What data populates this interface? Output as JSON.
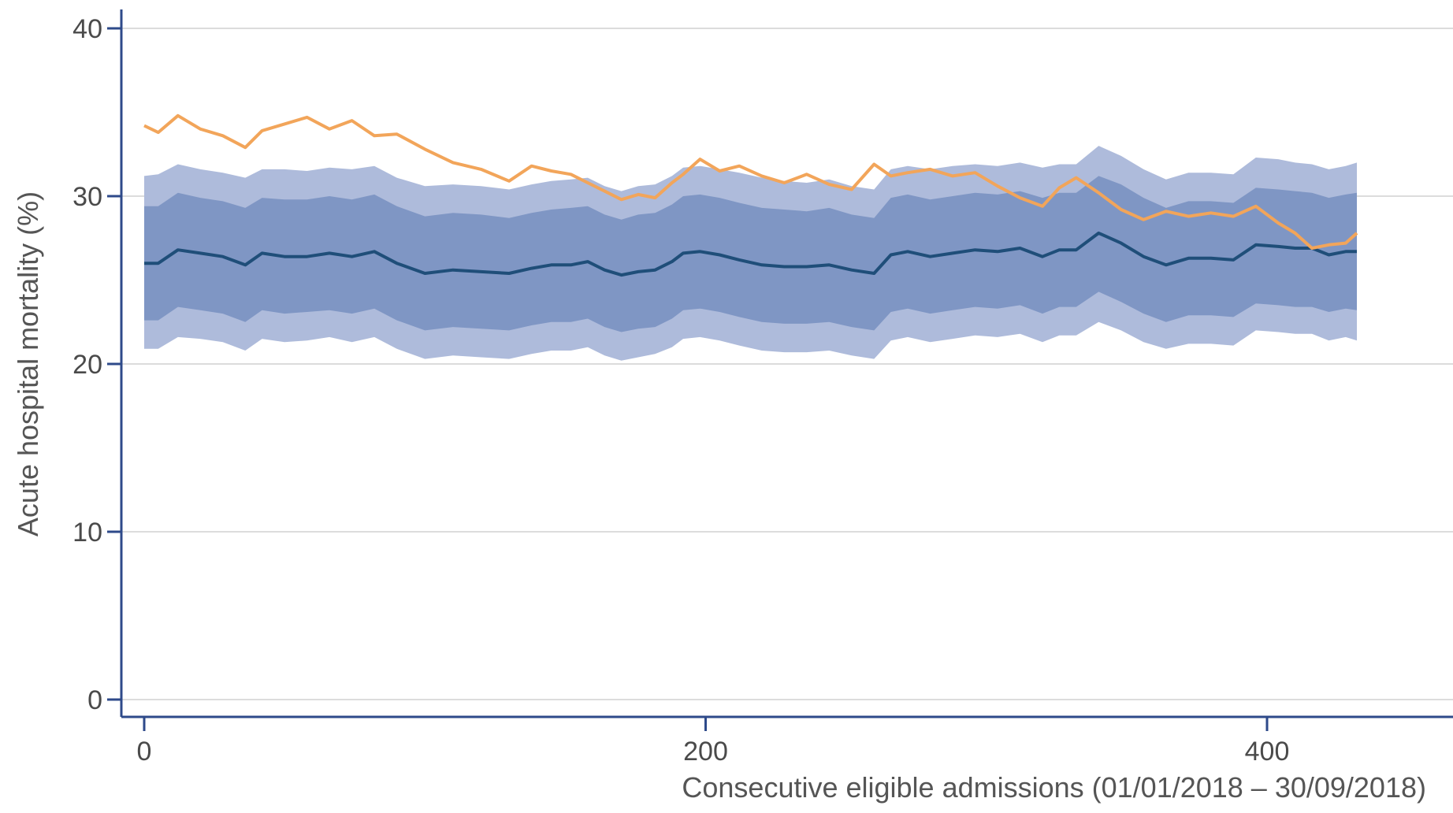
{
  "chart_data": {
    "type": "line",
    "title": "",
    "xlabel": "Consecutive eligible admissions (01/01/2018 – 30/09/2018)",
    "ylabel": "Acute hospital mortality (%)",
    "xlim": [
      -8,
      465
    ],
    "ylim": [
      -0.5,
      40.5
    ],
    "x_ticks": [
      0,
      200,
      400
    ],
    "y_ticks": [
      0,
      10,
      20,
      30,
      40
    ],
    "grid": true,
    "legend": "none",
    "colors": {
      "observed": "#f2a55a",
      "expected": "#1f4e79",
      "inner_band": "#7f96c4",
      "outer_band": "#aebbdb",
      "axis": "#2e4a8a",
      "grid": "#dcdcdc"
    },
    "series": [
      {
        "role": "observed",
        "x": [
          0,
          5,
          12,
          20,
          28,
          36,
          42,
          50,
          58,
          66,
          74,
          82,
          90,
          100,
          110,
          120,
          130,
          138,
          145,
          152,
          158,
          164,
          170,
          176,
          182,
          188,
          192,
          198,
          205,
          212,
          220,
          228,
          236,
          244,
          252,
          260,
          266,
          272,
          280,
          288,
          296,
          304,
          312,
          320,
          326,
          332,
          340,
          348,
          356,
          364,
          372,
          380,
          388,
          396,
          404,
          410,
          416,
          422,
          428,
          432
        ],
        "y": [
          34.2,
          33.8,
          34.8,
          34.0,
          33.6,
          32.9,
          33.9,
          34.3,
          34.7,
          34.0,
          34.5,
          33.6,
          33.7,
          32.8,
          32.0,
          31.6,
          30.9,
          31.8,
          31.5,
          31.3,
          30.8,
          30.3,
          29.8,
          30.1,
          29.9,
          30.8,
          31.3,
          32.2,
          31.5,
          31.8,
          31.2,
          30.8,
          31.3,
          30.7,
          30.4,
          31.9,
          31.2,
          31.4,
          31.6,
          31.2,
          31.4,
          30.6,
          29.9,
          29.4,
          30.5,
          31.1,
          30.2,
          29.2,
          28.6,
          29.1,
          28.8,
          29.0,
          28.8,
          29.4,
          28.4,
          27.8,
          26.9,
          27.1,
          27.2,
          27.8
        ]
      },
      {
        "role": "expected",
        "x": [
          0,
          5,
          12,
          20,
          28,
          36,
          42,
          50,
          58,
          66,
          74,
          82,
          90,
          100,
          110,
          120,
          130,
          138,
          145,
          152,
          158,
          164,
          170,
          176,
          182,
          188,
          192,
          198,
          205,
          212,
          220,
          228,
          236,
          244,
          252,
          260,
          266,
          272,
          280,
          288,
          296,
          304,
          312,
          320,
          326,
          332,
          340,
          348,
          356,
          364,
          372,
          380,
          388,
          396,
          404,
          410,
          416,
          422,
          428,
          432
        ],
        "y": [
          26.0,
          26.0,
          26.8,
          26.6,
          26.4,
          25.9,
          26.6,
          26.4,
          26.4,
          26.6,
          26.4,
          26.7,
          26.0,
          25.4,
          25.6,
          25.5,
          25.4,
          25.7,
          25.9,
          25.9,
          26.1,
          25.6,
          25.3,
          25.5,
          25.6,
          26.1,
          26.6,
          26.7,
          26.5,
          26.2,
          25.9,
          25.8,
          25.8,
          25.9,
          25.6,
          25.4,
          26.5,
          26.7,
          26.4,
          26.6,
          26.8,
          26.7,
          26.9,
          26.4,
          26.8,
          26.8,
          27.8,
          27.2,
          26.4,
          25.9,
          26.3,
          26.3,
          26.2,
          27.1,
          27.0,
          26.9,
          26.9,
          26.5,
          26.7,
          26.7
        ]
      }
    ],
    "bands": [
      {
        "role": "outer",
        "x": [
          0,
          5,
          12,
          20,
          28,
          36,
          42,
          50,
          58,
          66,
          74,
          82,
          90,
          100,
          110,
          120,
          130,
          138,
          145,
          152,
          158,
          164,
          170,
          176,
          182,
          188,
          192,
          198,
          205,
          212,
          220,
          228,
          236,
          244,
          252,
          260,
          266,
          272,
          280,
          288,
          296,
          304,
          312,
          320,
          326,
          332,
          340,
          348,
          356,
          364,
          372,
          380,
          388,
          396,
          404,
          410,
          416,
          422,
          428,
          432
        ],
        "upper": [
          31.2,
          31.3,
          31.9,
          31.6,
          31.4,
          31.1,
          31.6,
          31.6,
          31.5,
          31.7,
          31.6,
          31.8,
          31.1,
          30.6,
          30.7,
          30.6,
          30.4,
          30.7,
          30.9,
          31.0,
          31.1,
          30.6,
          30.3,
          30.6,
          30.7,
          31.2,
          31.7,
          31.8,
          31.6,
          31.4,
          31.1,
          30.9,
          30.8,
          31.0,
          30.6,
          30.4,
          31.6,
          31.8,
          31.6,
          31.8,
          31.9,
          31.8,
          32.0,
          31.7,
          31.9,
          31.9,
          33.0,
          32.4,
          31.6,
          31.0,
          31.4,
          31.4,
          31.3,
          32.3,
          32.2,
          32.0,
          31.9,
          31.6,
          31.8,
          32.0
        ],
        "lower": [
          20.9,
          20.9,
          21.6,
          21.5,
          21.3,
          20.8,
          21.5,
          21.3,
          21.4,
          21.6,
          21.3,
          21.6,
          20.9,
          20.3,
          20.5,
          20.4,
          20.3,
          20.6,
          20.8,
          20.8,
          21.0,
          20.5,
          20.2,
          20.4,
          20.6,
          21.0,
          21.5,
          21.6,
          21.4,
          21.1,
          20.8,
          20.7,
          20.7,
          20.8,
          20.5,
          20.3,
          21.4,
          21.6,
          21.3,
          21.5,
          21.7,
          21.6,
          21.8,
          21.3,
          21.7,
          21.7,
          22.5,
          22.0,
          21.3,
          20.9,
          21.2,
          21.2,
          21.1,
          22.0,
          21.9,
          21.8,
          21.8,
          21.4,
          21.6,
          21.4
        ]
      },
      {
        "role": "inner",
        "x": [
          0,
          5,
          12,
          20,
          28,
          36,
          42,
          50,
          58,
          66,
          74,
          82,
          90,
          100,
          110,
          120,
          130,
          138,
          145,
          152,
          158,
          164,
          170,
          176,
          182,
          188,
          192,
          198,
          205,
          212,
          220,
          228,
          236,
          244,
          252,
          260,
          266,
          272,
          280,
          288,
          296,
          304,
          312,
          320,
          326,
          332,
          340,
          348,
          356,
          364,
          372,
          380,
          388,
          396,
          404,
          410,
          416,
          422,
          428,
          432
        ],
        "upper": [
          29.4,
          29.4,
          30.2,
          29.9,
          29.7,
          29.3,
          29.9,
          29.8,
          29.8,
          30.0,
          29.8,
          30.1,
          29.4,
          28.8,
          29.0,
          28.9,
          28.7,
          29.0,
          29.2,
          29.3,
          29.4,
          28.9,
          28.6,
          28.9,
          29.0,
          29.5,
          30.0,
          30.1,
          29.9,
          29.6,
          29.3,
          29.2,
          29.1,
          29.3,
          28.9,
          28.7,
          29.9,
          30.1,
          29.8,
          30.0,
          30.2,
          30.1,
          30.3,
          29.9,
          30.2,
          30.2,
          31.2,
          30.7,
          29.9,
          29.3,
          29.7,
          29.7,
          29.6,
          30.5,
          30.4,
          30.3,
          30.2,
          29.9,
          30.1,
          30.2
        ],
        "lower": [
          22.6,
          22.6,
          23.4,
          23.2,
          23.0,
          22.5,
          23.2,
          23.0,
          23.1,
          23.2,
          23.0,
          23.3,
          22.6,
          22.0,
          22.2,
          22.1,
          22.0,
          22.3,
          22.5,
          22.5,
          22.7,
          22.2,
          21.9,
          22.1,
          22.2,
          22.7,
          23.2,
          23.3,
          23.1,
          22.8,
          22.5,
          22.4,
          22.4,
          22.5,
          22.2,
          22.0,
          23.1,
          23.3,
          23.0,
          23.2,
          23.4,
          23.3,
          23.5,
          23.0,
          23.4,
          23.4,
          24.3,
          23.7,
          23.0,
          22.5,
          22.9,
          22.9,
          22.8,
          23.6,
          23.5,
          23.4,
          23.4,
          23.1,
          23.3,
          23.2
        ]
      }
    ]
  }
}
